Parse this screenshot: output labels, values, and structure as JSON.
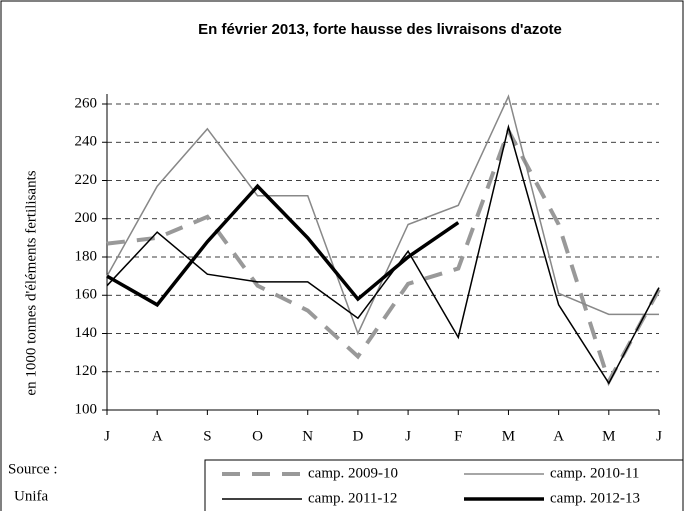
{
  "chart_data": {
    "type": "line",
    "title": "En février 2013, forte hausse des livraisons d'azote",
    "y_label": "en 1000 tonnes d'éléments fertilisants",
    "source": [
      "Source :",
      "Unifa"
    ],
    "categories": [
      "J",
      "A",
      "S",
      "O",
      "N",
      "D",
      "J",
      "F",
      "M",
      "A",
      "M",
      "J"
    ],
    "ylim": [
      100,
      260
    ],
    "yticks": [
      100,
      120,
      140,
      160,
      180,
      200,
      220,
      240,
      260
    ],
    "grid": true,
    "series": [
      {
        "name": "camp. 2009-10",
        "color": "#999999",
        "width": 4,
        "dash": "18,12",
        "values": [
          187,
          190,
          201,
          165,
          152,
          128,
          166,
          174,
          246,
          197,
          115,
          163
        ]
      },
      {
        "name": "camp. 2010-11",
        "color": "#888888",
        "width": 1.5,
        "dash": "",
        "values": [
          170,
          217,
          247,
          212,
          212,
          140,
          197,
          207,
          264,
          161,
          150,
          150
        ]
      },
      {
        "name": "camp. 2011-12",
        "color": "#000000",
        "width": 1.5,
        "dash": "",
        "values": [
          165,
          193,
          171,
          167,
          167,
          148,
          183,
          138,
          248,
          155,
          114,
          164
        ]
      },
      {
        "name": "camp. 2012-13",
        "color": "#000000",
        "width": 3.5,
        "dash": "",
        "values": [
          170,
          155,
          188,
          217,
          190,
          158,
          180,
          198,
          null,
          null,
          null,
          null
        ]
      }
    ]
  }
}
